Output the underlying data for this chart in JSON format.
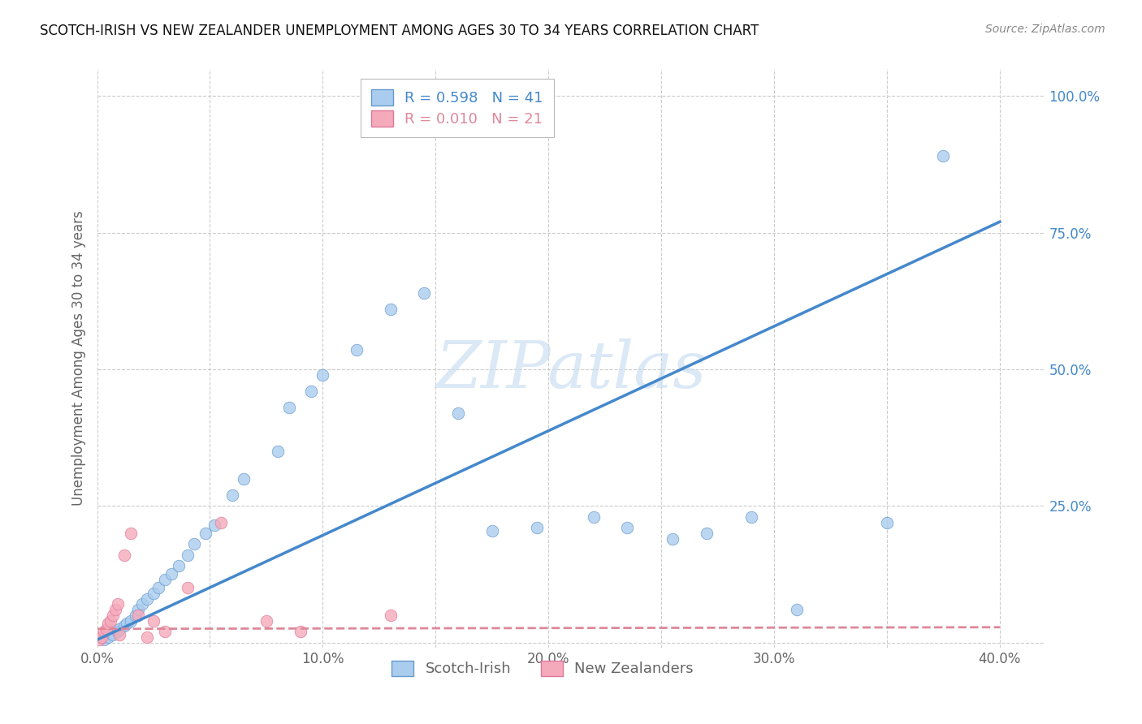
{
  "title": "SCOTCH-IRISH VS NEW ZEALANDER UNEMPLOYMENT AMONG AGES 30 TO 34 YEARS CORRELATION CHART",
  "source": "Source: ZipAtlas.com",
  "ylabel": "Unemployment Among Ages 30 to 34 years",
  "xlim": [
    0.0,
    0.42
  ],
  "ylim": [
    -0.01,
    1.05
  ],
  "xtick_positions": [
    0.0,
    0.05,
    0.1,
    0.15,
    0.2,
    0.25,
    0.3,
    0.35,
    0.4
  ],
  "xtick_labels": [
    "0.0%",
    "",
    "10.0%",
    "",
    "20.0%",
    "",
    "30.0%",
    "",
    "40.0%"
  ],
  "ytick_positions": [
    0.0,
    0.25,
    0.5,
    0.75,
    1.0
  ],
  "ytick_labels": [
    "",
    "25.0%",
    "50.0%",
    "75.0%",
    "100.0%"
  ],
  "scotch_irish_x": [
    0.003,
    0.005,
    0.007,
    0.009,
    0.01,
    0.012,
    0.013,
    0.015,
    0.017,
    0.018,
    0.02,
    0.022,
    0.025,
    0.027,
    0.03,
    0.033,
    0.036,
    0.04,
    0.043,
    0.048,
    0.052,
    0.06,
    0.065,
    0.08,
    0.085,
    0.095,
    0.1,
    0.115,
    0.13,
    0.145,
    0.16,
    0.175,
    0.195,
    0.22,
    0.235,
    0.255,
    0.27,
    0.29,
    0.31,
    0.35,
    0.375
  ],
  "scotch_irish_y": [
    0.005,
    0.01,
    0.015,
    0.02,
    0.025,
    0.03,
    0.035,
    0.04,
    0.05,
    0.06,
    0.07,
    0.08,
    0.09,
    0.1,
    0.115,
    0.125,
    0.14,
    0.16,
    0.18,
    0.2,
    0.215,
    0.27,
    0.3,
    0.35,
    0.43,
    0.46,
    0.49,
    0.535,
    0.61,
    0.64,
    0.42,
    0.205,
    0.21,
    0.23,
    0.21,
    0.19,
    0.2,
    0.23,
    0.06,
    0.22,
    0.89
  ],
  "nz_x": [
    0.001,
    0.002,
    0.003,
    0.004,
    0.005,
    0.006,
    0.007,
    0.008,
    0.009,
    0.01,
    0.012,
    0.015,
    0.018,
    0.022,
    0.025,
    0.03,
    0.04,
    0.055,
    0.075,
    0.09,
    0.13
  ],
  "nz_y": [
    0.005,
    0.01,
    0.02,
    0.025,
    0.035,
    0.04,
    0.05,
    0.06,
    0.07,
    0.015,
    0.16,
    0.2,
    0.05,
    0.01,
    0.04,
    0.02,
    0.1,
    0.22,
    0.04,
    0.02,
    0.05
  ],
  "blue_line_x0": 0.0,
  "blue_line_y0": 0.005,
  "blue_line_x1": 0.4,
  "blue_line_y1": 0.77,
  "pink_line_x0": 0.0,
  "pink_line_y0": 0.025,
  "pink_line_x1": 0.4,
  "pink_line_y1": 0.028,
  "blue_R": 0.598,
  "blue_N": 41,
  "pink_R": 0.01,
  "pink_N": 21,
  "blue_scatter_color": "#aaccee",
  "pink_scatter_color": "#f5aabb",
  "blue_edge_color": "#6699cc",
  "pink_edge_color": "#dd7799",
  "blue_line_color": "#4488cc",
  "pink_line_color": "#dd8899",
  "watermark_text": "ZIPatlas",
  "watermark_color": "#c8ddf0",
  "background_color": "#ffffff",
  "grid_color": "#cccccc",
  "legend_label_blue": "Scotch-Irish",
  "legend_label_pink": "New Zealanders",
  "title_color": "#111111",
  "axis_label_color": "#666666",
  "tick_color_y": "#4488cc",
  "tick_color_x": "#666666",
  "source_color": "#888888"
}
